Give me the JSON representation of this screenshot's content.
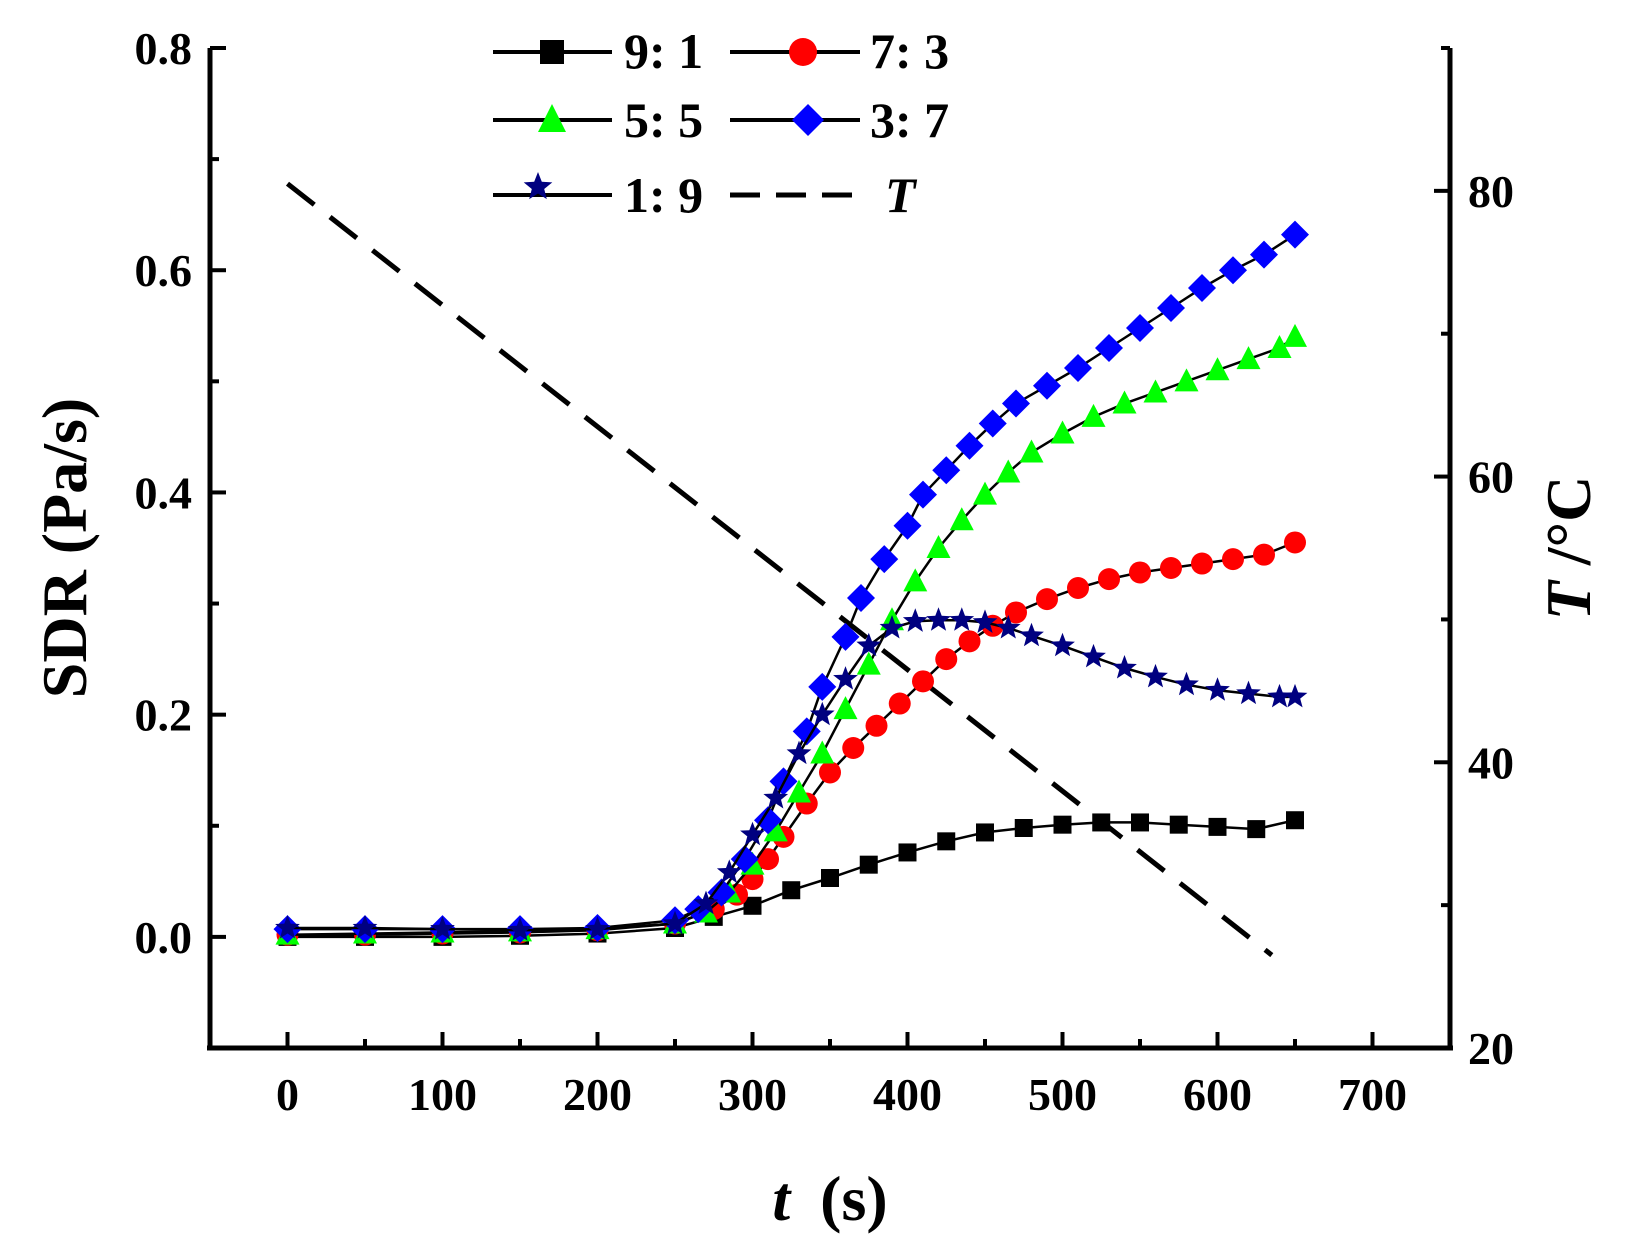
{
  "chart_data": {
    "type": "scatter",
    "x_axis": {
      "label": "(s)",
      "label_symbol": "t",
      "range": [
        -50,
        750
      ],
      "ticks": [
        "0",
        "100",
        "200",
        "300",
        "400",
        "500",
        "600",
        "700"
      ]
    },
    "y_axis": {
      "label": "SDR (Pa/s)",
      "range": [
        -0.1,
        0.8
      ],
      "ticks": [
        "0.0",
        "0.2",
        "0.4",
        "0.6",
        "0.8"
      ]
    },
    "y2_axis": {
      "label": "/°C",
      "label_symbol": "T",
      "range": [
        20,
        90
      ],
      "ticks": [
        "20",
        "40",
        "60",
        "80"
      ]
    },
    "series": [
      {
        "name": "9: 1",
        "marker": "square",
        "color": "#000000",
        "points": [
          [
            0,
            0.0
          ],
          [
            50,
            0.0
          ],
          [
            100,
            0.0
          ],
          [
            150,
            0.001
          ],
          [
            200,
            0.003
          ],
          [
            250,
            0.008
          ],
          [
            275,
            0.018
          ],
          [
            300,
            0.028
          ],
          [
            325,
            0.042
          ],
          [
            350,
            0.053
          ],
          [
            375,
            0.065
          ],
          [
            400,
            0.076
          ],
          [
            425,
            0.086
          ],
          [
            450,
            0.094
          ],
          [
            475,
            0.098
          ],
          [
            500,
            0.101
          ],
          [
            525,
            0.103
          ],
          [
            550,
            0.103
          ],
          [
            575,
            0.101
          ],
          [
            600,
            0.099
          ],
          [
            625,
            0.097
          ],
          [
            650,
            0.105
          ]
        ]
      },
      {
        "name": "7: 3",
        "marker": "circle",
        "color": "#ff0000",
        "points": [
          [
            0,
            0.002
          ],
          [
            50,
            0.002
          ],
          [
            100,
            0.003
          ],
          [
            150,
            0.004
          ],
          [
            200,
            0.006
          ],
          [
            250,
            0.012
          ],
          [
            275,
            0.025
          ],
          [
            290,
            0.038
          ],
          [
            300,
            0.052
          ],
          [
            310,
            0.07
          ],
          [
            320,
            0.09
          ],
          [
            335,
            0.12
          ],
          [
            350,
            0.148
          ],
          [
            365,
            0.17
          ],
          [
            380,
            0.19
          ],
          [
            395,
            0.21
          ],
          [
            410,
            0.23
          ],
          [
            425,
            0.25
          ],
          [
            440,
            0.266
          ],
          [
            455,
            0.28
          ],
          [
            470,
            0.292
          ],
          [
            490,
            0.304
          ],
          [
            510,
            0.314
          ],
          [
            530,
            0.322
          ],
          [
            550,
            0.328
          ],
          [
            570,
            0.332
          ],
          [
            590,
            0.336
          ],
          [
            610,
            0.34
          ],
          [
            630,
            0.344
          ],
          [
            650,
            0.355
          ]
        ]
      },
      {
        "name": "5: 5",
        "marker": "triangle",
        "color": "#00ff00",
        "points": [
          [
            0,
            0.002
          ],
          [
            50,
            0.003
          ],
          [
            100,
            0.004
          ],
          [
            150,
            0.005
          ],
          [
            200,
            0.007
          ],
          [
            250,
            0.012
          ],
          [
            270,
            0.022
          ],
          [
            285,
            0.04
          ],
          [
            300,
            0.065
          ],
          [
            315,
            0.095
          ],
          [
            330,
            0.13
          ],
          [
            345,
            0.165
          ],
          [
            360,
            0.205
          ],
          [
            375,
            0.245
          ],
          [
            390,
            0.285
          ],
          [
            405,
            0.32
          ],
          [
            420,
            0.35
          ],
          [
            435,
            0.375
          ],
          [
            450,
            0.398
          ],
          [
            465,
            0.418
          ],
          [
            480,
            0.436
          ],
          [
            500,
            0.453
          ],
          [
            520,
            0.468
          ],
          [
            540,
            0.48
          ],
          [
            560,
            0.49
          ],
          [
            580,
            0.5
          ],
          [
            600,
            0.51
          ],
          [
            620,
            0.52
          ],
          [
            640,
            0.53
          ],
          [
            650,
            0.54
          ]
        ]
      },
      {
        "name": "3: 7",
        "marker": "diamond",
        "color": "#0000ff",
        "points": [
          [
            0,
            0.007
          ],
          [
            50,
            0.007
          ],
          [
            100,
            0.007
          ],
          [
            150,
            0.007
          ],
          [
            200,
            0.008
          ],
          [
            250,
            0.015
          ],
          [
            265,
            0.025
          ],
          [
            280,
            0.04
          ],
          [
            295,
            0.07
          ],
          [
            310,
            0.105
          ],
          [
            320,
            0.14
          ],
          [
            335,
            0.185
          ],
          [
            345,
            0.225
          ],
          [
            360,
            0.27
          ],
          [
            370,
            0.305
          ],
          [
            385,
            0.34
          ],
          [
            400,
            0.37
          ],
          [
            410,
            0.398
          ],
          [
            425,
            0.42
          ],
          [
            440,
            0.442
          ],
          [
            455,
            0.462
          ],
          [
            470,
            0.48
          ],
          [
            490,
            0.496
          ],
          [
            510,
            0.512
          ],
          [
            530,
            0.53
          ],
          [
            550,
            0.548
          ],
          [
            570,
            0.566
          ],
          [
            590,
            0.584
          ],
          [
            610,
            0.6
          ],
          [
            630,
            0.614
          ],
          [
            650,
            0.632
          ]
        ]
      },
      {
        "name": "1: 9",
        "marker": "star",
        "color": "#000080",
        "points": [
          [
            0,
            0.008
          ],
          [
            50,
            0.008
          ],
          [
            100,
            0.007
          ],
          [
            150,
            0.006
          ],
          [
            200,
            0.007
          ],
          [
            250,
            0.012
          ],
          [
            270,
            0.03
          ],
          [
            285,
            0.058
          ],
          [
            300,
            0.092
          ],
          [
            315,
            0.125
          ],
          [
            330,
            0.165
          ],
          [
            345,
            0.2
          ],
          [
            360,
            0.232
          ],
          [
            375,
            0.262
          ],
          [
            390,
            0.278
          ],
          [
            405,
            0.284
          ],
          [
            420,
            0.285
          ],
          [
            435,
            0.285
          ],
          [
            450,
            0.283
          ],
          [
            465,
            0.278
          ],
          [
            480,
            0.271
          ],
          [
            500,
            0.262
          ],
          [
            520,
            0.252
          ],
          [
            540,
            0.242
          ],
          [
            560,
            0.234
          ],
          [
            580,
            0.227
          ],
          [
            600,
            0.222
          ],
          [
            620,
            0.219
          ],
          [
            640,
            0.216
          ],
          [
            650,
            0.216
          ]
        ]
      },
      {
        "name": "T",
        "marker": "none",
        "line": "dashed",
        "axis": "y2",
        "color": "#000000",
        "points": [
          [
            0,
            80.5
          ],
          [
            635,
            26.5
          ]
        ]
      }
    ]
  }
}
